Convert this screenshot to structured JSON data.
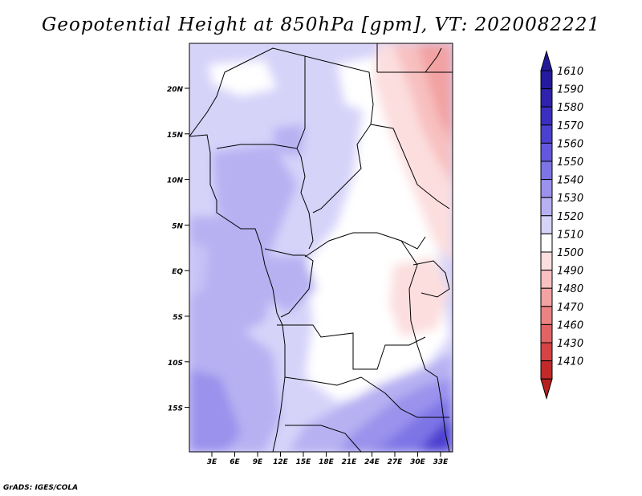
{
  "title": "Geopotential Height at 850hPa [gpm], VT: 2020082221",
  "credit": "GrADS: IGES/COLA",
  "map": {
    "lat_labels": [
      "20N",
      "15N",
      "10N",
      "5N",
      "EQ",
      "5S",
      "10S",
      "15S"
    ],
    "lon_labels": [
      "3E",
      "6E",
      "9E",
      "12E",
      "15E",
      "18E",
      "21E",
      "24E",
      "27E",
      "30E",
      "33E"
    ]
  },
  "colorbar": {
    "levels": [
      {
        "label": "1610",
        "color": "#241a9e"
      },
      {
        "label": "1590",
        "color": "#2e22ae"
      },
      {
        "label": "1580",
        "color": "#3a2fc0"
      },
      {
        "label": "1570",
        "color": "#4b41d0"
      },
      {
        "label": "1560",
        "color": "#6358dd"
      },
      {
        "label": "1550",
        "color": "#7d74e6"
      },
      {
        "label": "1540",
        "color": "#9a92ec"
      },
      {
        "label": "1530",
        "color": "#b7b1f2"
      },
      {
        "label": "1520",
        "color": "#d6d3f9"
      },
      {
        "label": "1510",
        "color": "#ffffff"
      },
      {
        "label": "1500",
        "color": "#fcdede"
      },
      {
        "label": "1490",
        "color": "#f8c0c0"
      },
      {
        "label": "1480",
        "color": "#f2a2a2"
      },
      {
        "label": "1470",
        "color": "#eb8383"
      },
      {
        "label": "1460",
        "color": "#e26363"
      },
      {
        "label": "1430",
        "color": "#d44444"
      },
      {
        "label": "1410",
        "color": "#c22a2a"
      }
    ],
    "top_color": "#221a9a",
    "bottom_color": "#b82020"
  }
}
